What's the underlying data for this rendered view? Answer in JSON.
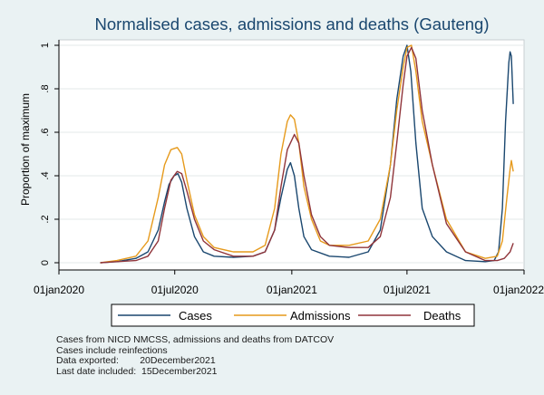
{
  "chart_data": {
    "type": "line",
    "title": "Normalised cases, admissions and deaths (Gauteng)",
    "ylabel": "Proportion of maximum",
    "xlabel": "",
    "ylim": [
      0,
      1.05
    ],
    "xlim": [
      "2020-01-01",
      "2022-01-01"
    ],
    "yticks": [
      0,
      0.2,
      0.4,
      0.6,
      0.8,
      1
    ],
    "ytick_labels": [
      "0",
      ".2",
      ".4",
      ".6",
      ".8",
      "1"
    ],
    "xtick_dates": [
      "2020-01-01",
      "2020-07-01",
      "2021-01-01",
      "2021-07-01",
      "2022-01-01"
    ],
    "xtick_labels": [
      "01jan2020",
      "01jul2020",
      "01jan2021",
      "01jul2021",
      "01jan2022"
    ],
    "grid": true,
    "legend_position": "bottom",
    "series": [
      {
        "name": "Cases",
        "color": "#1a476f",
        "points": [
          [
            "2020-03-06",
            0.0
          ],
          [
            "2020-04-01",
            0.005
          ],
          [
            "2020-05-01",
            0.02
          ],
          [
            "2020-05-20",
            0.05
          ],
          [
            "2020-06-05",
            0.15
          ],
          [
            "2020-06-15",
            0.28
          ],
          [
            "2020-06-22",
            0.36
          ],
          [
            "2020-06-30",
            0.4
          ],
          [
            "2020-07-06",
            0.41
          ],
          [
            "2020-07-12",
            0.37
          ],
          [
            "2020-07-20",
            0.25
          ],
          [
            "2020-08-01",
            0.12
          ],
          [
            "2020-08-15",
            0.05
          ],
          [
            "2020-09-01",
            0.03
          ],
          [
            "2020-10-01",
            0.025
          ],
          [
            "2020-11-01",
            0.03
          ],
          [
            "2020-11-20",
            0.05
          ],
          [
            "2020-12-05",
            0.15
          ],
          [
            "2020-12-15",
            0.3
          ],
          [
            "2020-12-25",
            0.43
          ],
          [
            "2020-12-30",
            0.46
          ],
          [
            "2021-01-05",
            0.4
          ],
          [
            "2021-01-12",
            0.25
          ],
          [
            "2021-01-20",
            0.12
          ],
          [
            "2021-02-01",
            0.06
          ],
          [
            "2021-03-01",
            0.03
          ],
          [
            "2021-04-01",
            0.025
          ],
          [
            "2021-05-01",
            0.05
          ],
          [
            "2021-05-20",
            0.15
          ],
          [
            "2021-06-05",
            0.45
          ],
          [
            "2021-06-15",
            0.75
          ],
          [
            "2021-06-25",
            0.95
          ],
          [
            "2021-07-01",
            1.0
          ],
          [
            "2021-07-07",
            0.88
          ],
          [
            "2021-07-15",
            0.55
          ],
          [
            "2021-07-25",
            0.25
          ],
          [
            "2021-08-10",
            0.12
          ],
          [
            "2021-09-01",
            0.05
          ],
          [
            "2021-10-01",
            0.01
          ],
          [
            "2021-11-01",
            0.005
          ],
          [
            "2021-11-15",
            0.01
          ],
          [
            "2021-11-22",
            0.05
          ],
          [
            "2021-11-28",
            0.25
          ],
          [
            "2021-12-03",
            0.65
          ],
          [
            "2021-12-08",
            0.92
          ],
          [
            "2021-12-10",
            0.97
          ],
          [
            "2021-12-12",
            0.95
          ],
          [
            "2021-12-15",
            0.73
          ]
        ]
      },
      {
        "name": "Admissions",
        "color": "#e69a1c",
        "points": [
          [
            "2020-03-06",
            0.0
          ],
          [
            "2020-04-01",
            0.01
          ],
          [
            "2020-05-01",
            0.03
          ],
          [
            "2020-05-20",
            0.1
          ],
          [
            "2020-06-05",
            0.3
          ],
          [
            "2020-06-15",
            0.45
          ],
          [
            "2020-06-25",
            0.52
          ],
          [
            "2020-07-05",
            0.53
          ],
          [
            "2020-07-12",
            0.5
          ],
          [
            "2020-07-20",
            0.38
          ],
          [
            "2020-08-01",
            0.22
          ],
          [
            "2020-08-15",
            0.12
          ],
          [
            "2020-09-01",
            0.07
          ],
          [
            "2020-10-01",
            0.05
          ],
          [
            "2020-11-01",
            0.05
          ],
          [
            "2020-11-20",
            0.08
          ],
          [
            "2020-12-05",
            0.25
          ],
          [
            "2020-12-15",
            0.5
          ],
          [
            "2020-12-25",
            0.65
          ],
          [
            "2020-12-30",
            0.68
          ],
          [
            "2021-01-05",
            0.66
          ],
          [
            "2021-01-12",
            0.55
          ],
          [
            "2021-01-20",
            0.35
          ],
          [
            "2021-02-01",
            0.2
          ],
          [
            "2021-02-15",
            0.1
          ],
          [
            "2021-03-01",
            0.08
          ],
          [
            "2021-04-01",
            0.08
          ],
          [
            "2021-05-01",
            0.1
          ],
          [
            "2021-05-20",
            0.2
          ],
          [
            "2021-06-05",
            0.45
          ],
          [
            "2021-06-15",
            0.7
          ],
          [
            "2021-06-25",
            0.9
          ],
          [
            "2021-07-01",
            0.99
          ],
          [
            "2021-07-08",
            1.0
          ],
          [
            "2021-07-15",
            0.88
          ],
          [
            "2021-07-25",
            0.65
          ],
          [
            "2021-08-10",
            0.45
          ],
          [
            "2021-09-01",
            0.2
          ],
          [
            "2021-10-01",
            0.05
          ],
          [
            "2021-11-01",
            0.02
          ],
          [
            "2021-11-20",
            0.03
          ],
          [
            "2021-11-28",
            0.1
          ],
          [
            "2021-12-05",
            0.3
          ],
          [
            "2021-12-10",
            0.43
          ],
          [
            "2021-12-12",
            0.47
          ],
          [
            "2021-12-15",
            0.42
          ]
        ]
      },
      {
        "name": "Deaths",
        "color": "#90353b",
        "points": [
          [
            "2020-03-06",
            0.0
          ],
          [
            "2020-04-01",
            0.005
          ],
          [
            "2020-05-01",
            0.01
          ],
          [
            "2020-05-20",
            0.03
          ],
          [
            "2020-06-05",
            0.1
          ],
          [
            "2020-06-15",
            0.25
          ],
          [
            "2020-06-25",
            0.38
          ],
          [
            "2020-07-05",
            0.42
          ],
          [
            "2020-07-12",
            0.41
          ],
          [
            "2020-07-20",
            0.33
          ],
          [
            "2020-08-01",
            0.2
          ],
          [
            "2020-08-15",
            0.1
          ],
          [
            "2020-09-01",
            0.06
          ],
          [
            "2020-10-01",
            0.03
          ],
          [
            "2020-11-01",
            0.03
          ],
          [
            "2020-11-20",
            0.05
          ],
          [
            "2020-12-05",
            0.15
          ],
          [
            "2020-12-15",
            0.35
          ],
          [
            "2020-12-25",
            0.52
          ],
          [
            "2021-01-05",
            0.59
          ],
          [
            "2021-01-12",
            0.55
          ],
          [
            "2021-01-20",
            0.4
          ],
          [
            "2021-02-01",
            0.22
          ],
          [
            "2021-02-15",
            0.12
          ],
          [
            "2021-03-01",
            0.08
          ],
          [
            "2021-04-01",
            0.07
          ],
          [
            "2021-05-01",
            0.07
          ],
          [
            "2021-05-20",
            0.12
          ],
          [
            "2021-06-05",
            0.3
          ],
          [
            "2021-06-15",
            0.55
          ],
          [
            "2021-06-25",
            0.82
          ],
          [
            "2021-07-01",
            0.95
          ],
          [
            "2021-07-08",
            0.99
          ],
          [
            "2021-07-15",
            0.94
          ],
          [
            "2021-07-25",
            0.7
          ],
          [
            "2021-08-10",
            0.45
          ],
          [
            "2021-09-01",
            0.18
          ],
          [
            "2021-10-01",
            0.05
          ],
          [
            "2021-11-01",
            0.01
          ],
          [
            "2021-11-20",
            0.01
          ],
          [
            "2021-12-01",
            0.02
          ],
          [
            "2021-12-10",
            0.05
          ],
          [
            "2021-12-15",
            0.09
          ]
        ]
      }
    ]
  },
  "notes": [
    "Cases from NICD NMCSS, admissions and deaths from DATCOV",
    "Cases include reinfections",
    "Data exported:        20December2021",
    "Last date included:  15December2021"
  ]
}
